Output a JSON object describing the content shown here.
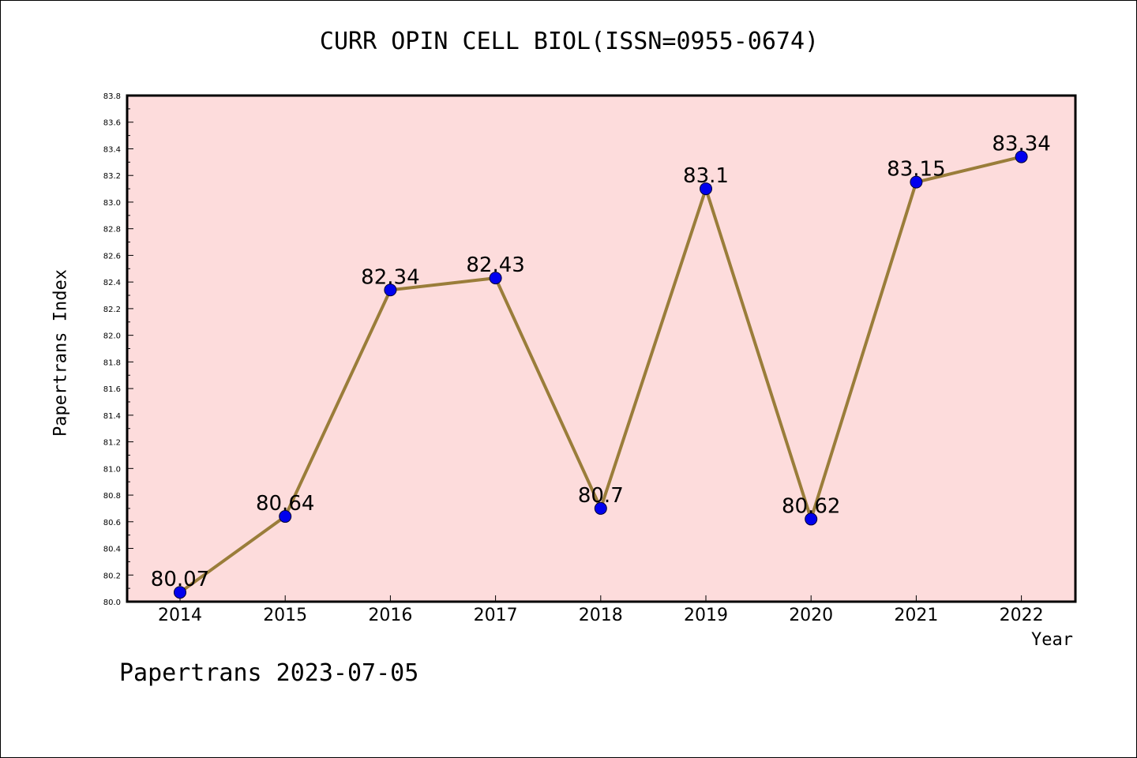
{
  "title": "CURR OPIN CELL BIOL(ISSN=0955-0674)",
  "footer": "Papertrans 2023-07-05",
  "colors": {
    "plot_background": "#fddcdc",
    "line": "#9a7d3a",
    "marker": "#0000ee"
  },
  "chart_data": {
    "type": "line",
    "title": "CURR OPIN CELL BIOL(ISSN=0955-0674)",
    "xlabel": "Year",
    "ylabel": "Papertrans Index",
    "categories": [
      "2014",
      "2015",
      "2016",
      "2017",
      "2018",
      "2019",
      "2020",
      "2021",
      "2022"
    ],
    "series": [
      {
        "values": [
          80.07,
          80.64,
          82.34,
          82.43,
          80.7,
          83.1,
          80.62,
          83.15,
          83.34
        ],
        "data_labels": [
          "80.07",
          "80.64",
          "82.34",
          "82.43",
          "80.7",
          "83.1",
          "80.62",
          "83.15",
          "83.34"
        ]
      }
    ],
    "ylim": [
      80.0,
      83.8
    ],
    "yticks": [
      "80.0",
      "80.2",
      "80.4",
      "80.6",
      "80.8",
      "81.0",
      "81.2",
      "81.4",
      "81.6",
      "81.8",
      "82.0",
      "82.2",
      "82.4",
      "82.6",
      "82.8",
      "83.0",
      "83.2",
      "83.4",
      "83.6",
      "83.8"
    ],
    "grid": false,
    "legend": "none"
  }
}
